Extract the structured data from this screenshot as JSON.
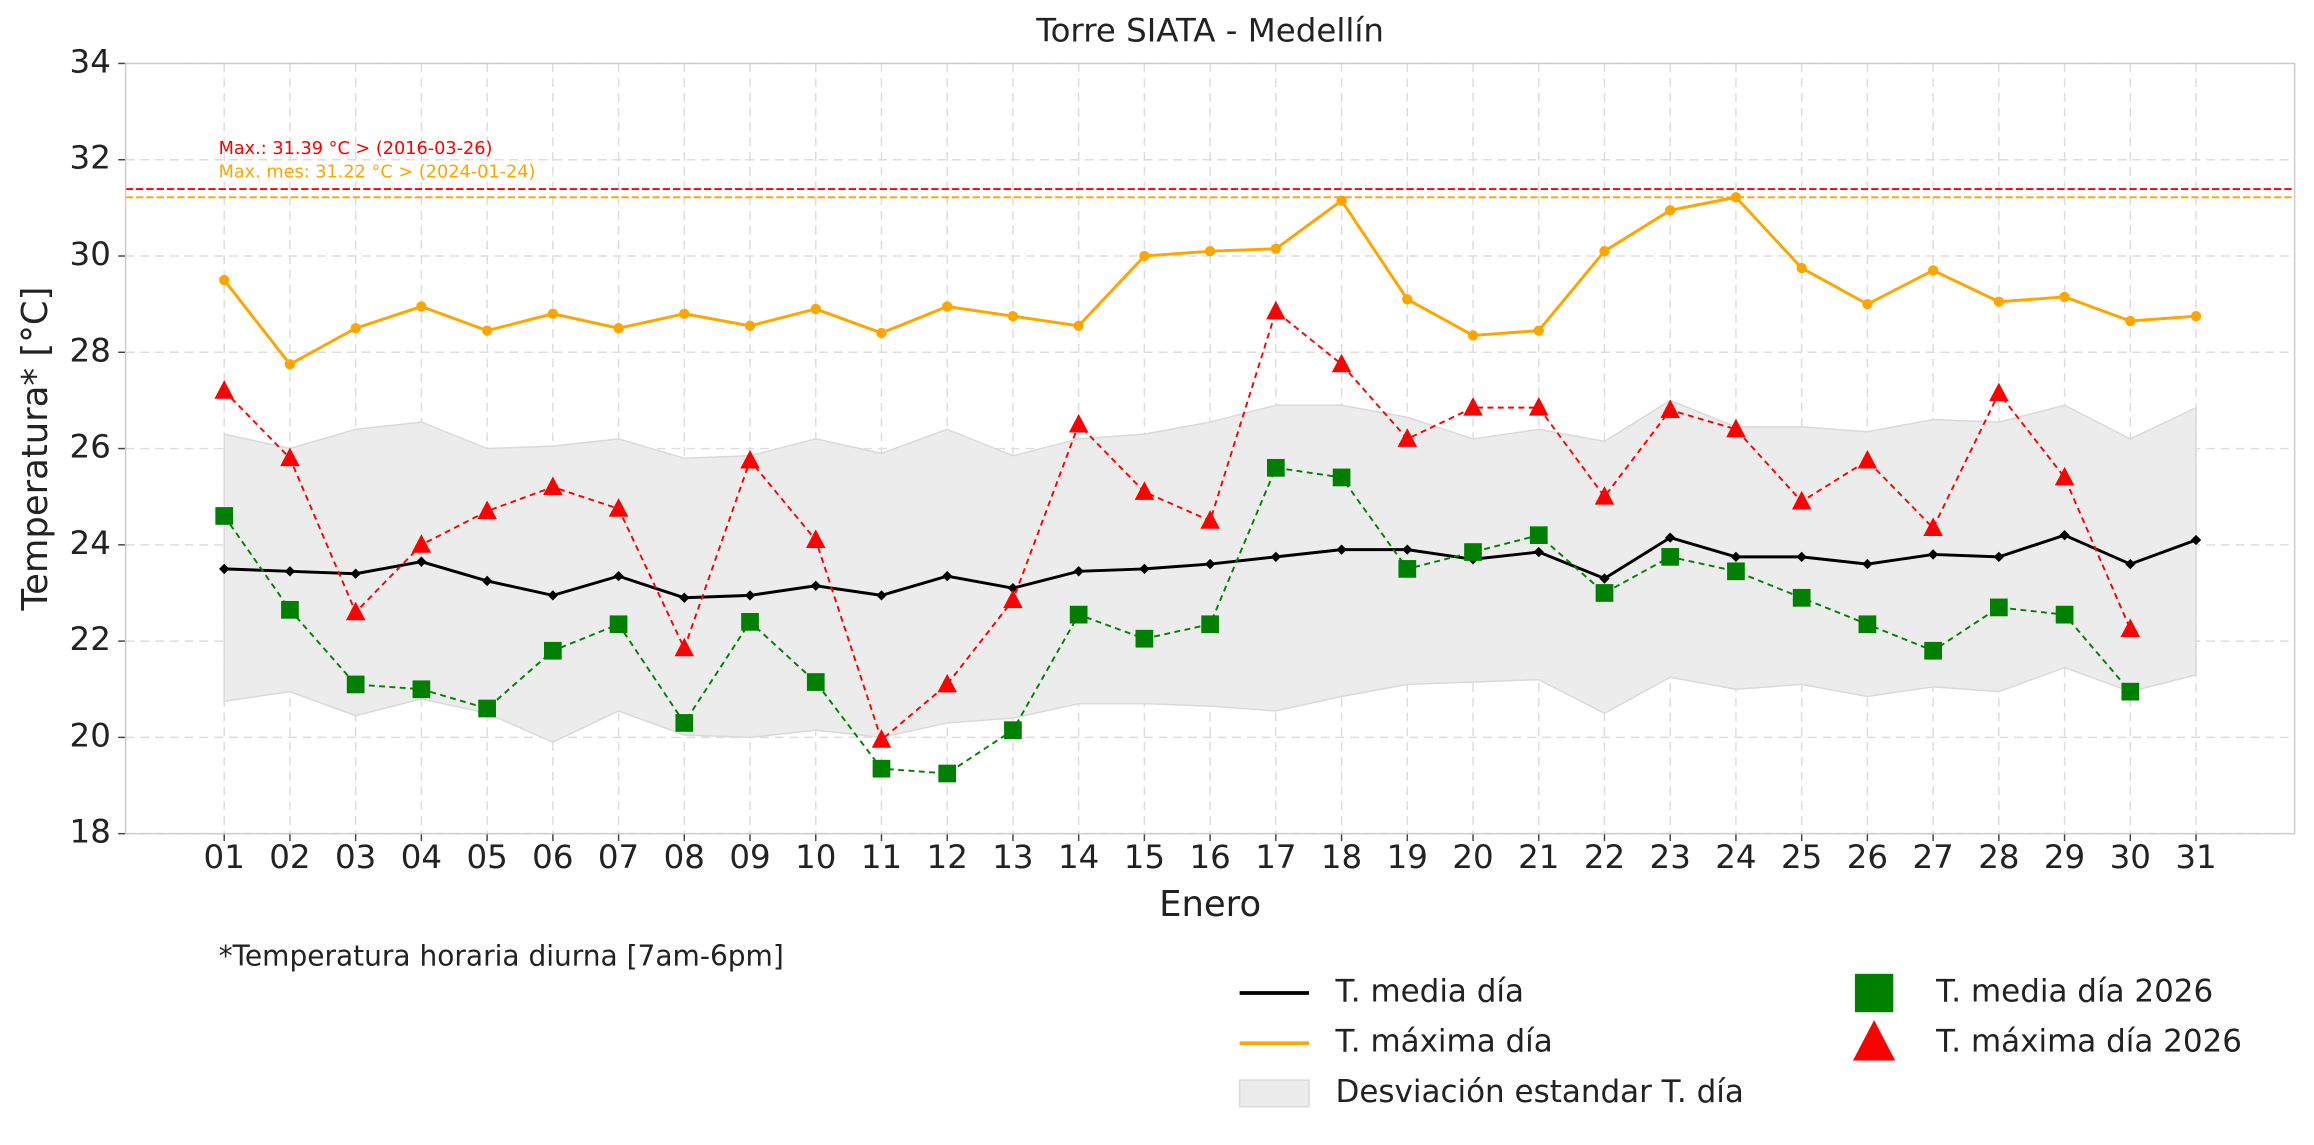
{
  "chart_data": {
    "type": "line",
    "title": "Torre SIATA - Medellín",
    "x_label": "Enero",
    "y_label": "Temperatura* [°C]",
    "footnote": "*Temperatura horaria diurna [7am-6pm]",
    "categories": [
      "01",
      "02",
      "03",
      "04",
      "05",
      "06",
      "07",
      "08",
      "09",
      "10",
      "11",
      "12",
      "13",
      "14",
      "15",
      "16",
      "17",
      "18",
      "19",
      "20",
      "21",
      "22",
      "23",
      "24",
      "25",
      "26",
      "27",
      "28",
      "29",
      "30",
      "31"
    ],
    "ylim": [
      18,
      34
    ],
    "yticks": [
      18,
      20,
      22,
      24,
      26,
      28,
      30,
      32,
      34
    ],
    "grid": true,
    "reference_lines": [
      {
        "value": 31.39,
        "color": "#ff0000",
        "label": "Max.: 31.39 °C  >  (2016-03-26)"
      },
      {
        "value": 31.22,
        "color": "#ffa500",
        "label": "Max. mes: 31.22 °C  >  (2024-01-24)"
      }
    ],
    "series": [
      {
        "name": "T. media día",
        "color": "#000000",
        "kind": "line",
        "marker": "diamond",
        "values": [
          23.5,
          23.45,
          23.4,
          23.65,
          23.25,
          22.95,
          23.35,
          22.9,
          22.95,
          23.15,
          22.95,
          23.35,
          23.1,
          23.45,
          23.5,
          23.6,
          23.75,
          23.9,
          23.9,
          23.7,
          23.85,
          23.3,
          24.15,
          23.75,
          23.75,
          23.6,
          23.8,
          23.75,
          24.2,
          23.6,
          24.1
        ]
      },
      {
        "name": "T. máxima día",
        "color": "#ffa500",
        "kind": "line",
        "marker": "circle",
        "values": [
          29.5,
          27.75,
          28.5,
          28.95,
          28.45,
          28.8,
          28.5,
          28.8,
          28.55,
          28.9,
          28.4,
          28.95,
          28.75,
          28.55,
          30.0,
          30.1,
          30.15,
          31.15,
          29.1,
          28.35,
          28.45,
          30.1,
          30.95,
          31.22,
          29.75,
          29.0,
          29.7,
          29.05,
          29.15,
          28.65,
          28.75
        ]
      },
      {
        "name": "Desviación estandar T. día",
        "color": "#d9d9d9",
        "kind": "band",
        "upper": [
          26.3,
          26.0,
          26.4,
          26.55,
          26.0,
          26.05,
          26.2,
          25.8,
          25.85,
          26.2,
          25.9,
          26.4,
          25.85,
          26.2,
          26.3,
          26.55,
          26.9,
          26.9,
          26.65,
          26.2,
          26.4,
          26.15,
          27.0,
          26.45,
          26.45,
          26.35,
          26.6,
          26.55,
          26.9,
          26.2,
          26.85
        ],
        "lower": [
          20.75,
          20.95,
          20.45,
          20.8,
          20.5,
          19.9,
          20.55,
          20.05,
          20.0,
          20.15,
          20.0,
          20.3,
          20.4,
          20.7,
          20.7,
          20.65,
          20.55,
          20.85,
          21.1,
          21.15,
          21.2,
          20.5,
          21.25,
          21.0,
          21.1,
          20.85,
          21.05,
          20.95,
          21.45,
          20.95,
          21.3
        ]
      },
      {
        "name": "T. media día 2026",
        "color": "#008000",
        "kind": "dashed",
        "marker": "square",
        "values": [
          24.6,
          22.65,
          21.1,
          21.0,
          20.6,
          21.8,
          22.35,
          20.3,
          22.4,
          21.15,
          19.35,
          19.25,
          20.15,
          22.55,
          22.05,
          22.35,
          25.6,
          25.4,
          23.5,
          23.85,
          24.2,
          23.0,
          23.75,
          23.45,
          22.9,
          22.35,
          21.8,
          22.7,
          22.55,
          20.95,
          null
        ]
      },
      {
        "name": "T. máxima día 2026",
        "color": "#ff0000",
        "kind": "dashed",
        "marker": "triangle",
        "values": [
          27.2,
          25.8,
          22.6,
          24.0,
          24.7,
          25.2,
          24.75,
          21.85,
          25.75,
          24.1,
          19.95,
          21.1,
          22.85,
          26.5,
          25.1,
          24.5,
          28.85,
          27.75,
          26.2,
          26.85,
          26.85,
          25.0,
          26.8,
          26.4,
          24.9,
          25.75,
          24.35,
          27.15,
          25.4,
          22.25,
          null
        ]
      }
    ]
  }
}
